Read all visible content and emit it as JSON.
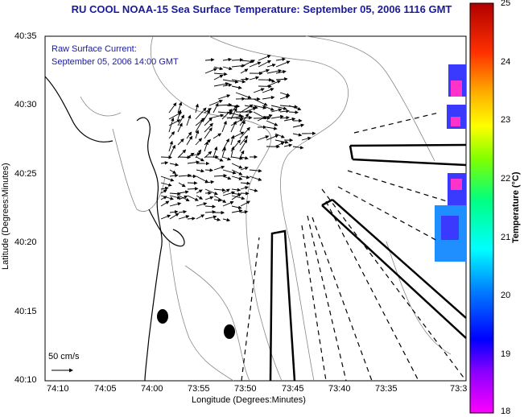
{
  "title": "RU COOL  NOAA-15  Sea Surface Temperature:  September 05, 2006 1116 GMT",
  "annotation": {
    "line1": "Raw Surface Current:",
    "line2": "September 05, 2006 14:00 GMT"
  },
  "x_axis": {
    "label": "Longitude (Degrees:Minutes)",
    "ticks": [
      "74:10",
      "74:05",
      "74:00",
      "73:55",
      "73:50",
      "73:45",
      "73:40",
      "73:35",
      "73:3"
    ]
  },
  "y_axis": {
    "label": "Latitude (Degrees:Minutes)",
    "ticks": [
      "40:35",
      "40:30",
      "40:25",
      "40:20",
      "40:15",
      "40:10"
    ]
  },
  "scale_label": "50 cm/s",
  "colorbar": {
    "label": "Temperature (°C)",
    "ticks": [
      "25",
      "24",
      "23",
      "22",
      "21",
      "20",
      "19",
      "18"
    ],
    "range": [
      18,
      25
    ],
    "colors": [
      "#ff00ff",
      "#6a00ff",
      "#0000ff",
      "#0080ff",
      "#00ffff",
      "#00ff80",
      "#80ff00",
      "#ffff00",
      "#ffb000",
      "#ff4000",
      "#ff0000",
      "#b00000"
    ]
  },
  "sst_patches_color": [
    "#3a3aff",
    "#ff33cc",
    "#1f8fff"
  ]
}
